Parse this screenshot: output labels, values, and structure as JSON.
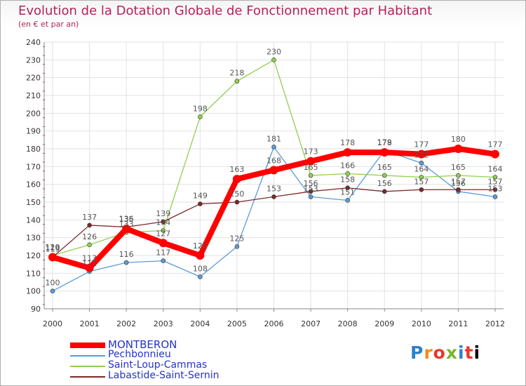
{
  "chart_data": {
    "type": "line",
    "title": "Evolution de la Dotation Globale de Fonctionnement par Habitant",
    "subtitle": "(en € et par an)",
    "xlabel": "",
    "ylabel": "",
    "ylim": [
      90,
      240
    ],
    "yticks": [
      90,
      100,
      110,
      120,
      130,
      140,
      150,
      160,
      170,
      180,
      190,
      200,
      210,
      220,
      230,
      240
    ],
    "grid": true,
    "categories": [
      "2000",
      "2001",
      "2002",
      "2003",
      "2004",
      "2005",
      "2006",
      "2007",
      "2008",
      "2009",
      "2010",
      "2011",
      "2012"
    ],
    "series": [
      {
        "name": "MONTBERON",
        "color": "#ff0000",
        "emphasis": true,
        "values": [
          119,
          113,
          135,
          127,
          120,
          163,
          168,
          173,
          178,
          178,
          177,
          180,
          177
        ]
      },
      {
        "name": "Pechbonnieu",
        "color": "#5b9bd5",
        "emphasis": false,
        "values": [
          100,
          111,
          116,
          117,
          108,
          125,
          181,
          153,
          151,
          179,
          172,
          156,
          153
        ]
      },
      {
        "name": "Saint-Loup-Cammas",
        "color": "#8ed04f",
        "emphasis": false,
        "values": [
          120,
          126,
          133,
          134,
          198,
          218,
          230,
          165,
          166,
          165,
          164,
          165,
          164
        ]
      },
      {
        "name": "Labastide-Saint-Sernin",
        "color": "#7a2a2a",
        "emphasis": false,
        "values": [
          119,
          137,
          136,
          139,
          149,
          150,
          153,
          156,
          158,
          156,
          157,
          157,
          157
        ]
      }
    ]
  },
  "logo": {
    "letters": [
      "P",
      "r",
      "o",
      "x",
      "i",
      "t",
      "i"
    ]
  }
}
